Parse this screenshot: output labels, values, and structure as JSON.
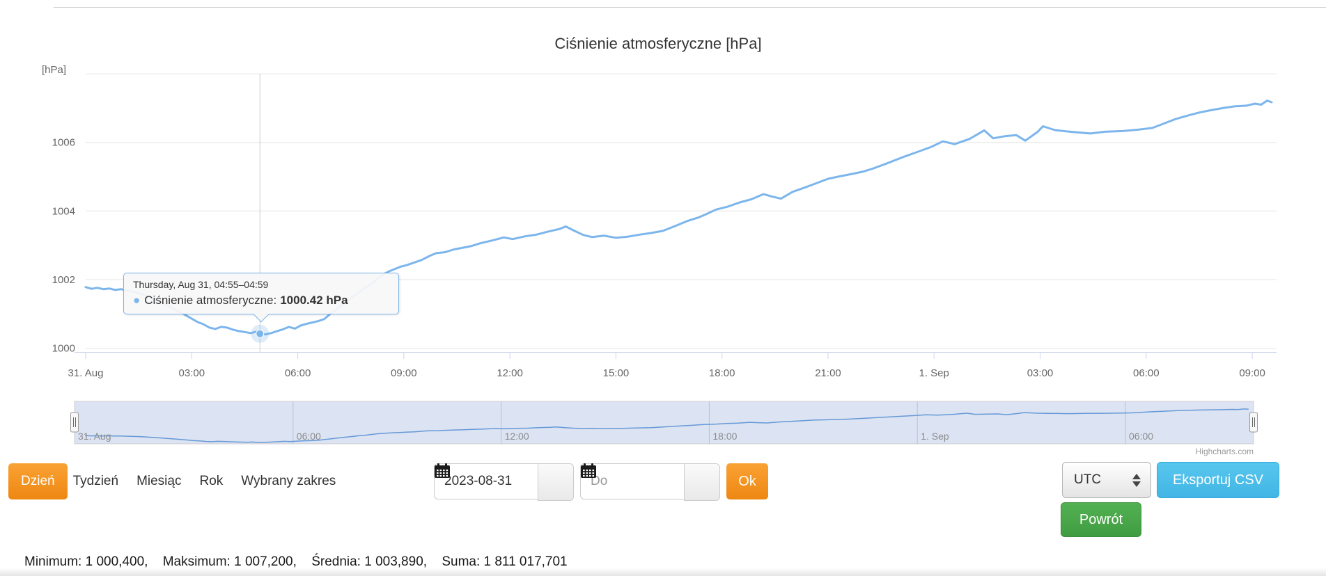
{
  "chart": {
    "title": "Ciśnienie atmosferyczne [hPa]",
    "y_axis_title": "[hPa]",
    "y_ticks": [
      1000,
      1002,
      1004,
      1006
    ],
    "y_grid": [
      1000,
      1002,
      1004,
      1006,
      1008
    ],
    "x_ticks": [
      {
        "t": 0,
        "label": "31. Aug"
      },
      {
        "t": 3,
        "label": "03:00"
      },
      {
        "t": 6,
        "label": "06:00"
      },
      {
        "t": 9,
        "label": "09:00"
      },
      {
        "t": 12,
        "label": "12:00"
      },
      {
        "t": 15,
        "label": "15:00"
      },
      {
        "t": 18,
        "label": "18:00"
      },
      {
        "t": 21,
        "label": "21:00"
      },
      {
        "t": 24,
        "label": "1. Sep"
      },
      {
        "t": 27,
        "label": "03:00"
      },
      {
        "t": 30,
        "label": "06:00"
      },
      {
        "t": 33,
        "label": "09:00"
      }
    ],
    "credits": "Highcharts.com",
    "colors": {
      "series": "#7cb5ec",
      "grid": "#e6e6e6",
      "axis_line": "#ccd6eb",
      "labels": "#666666",
      "crosshair": "#cccccc"
    }
  },
  "chart_data": {
    "type": "line",
    "title": "Ciśnienie atmosferyczne [hPa]",
    "xlabel": "time (hours since 2023-08-31 00:00 UTC)",
    "ylabel": "[hPa]",
    "ylim": [
      999.9,
      1008.1
    ],
    "xlim": [
      0,
      33.75
    ],
    "grid": "horizontal",
    "legend_position": "none",
    "series": [
      {
        "name": "Ciśnienie atmosferyczne",
        "color": "#7cb5ec",
        "points": [
          [
            0.0,
            1001.78
          ],
          [
            0.17,
            1001.73
          ],
          [
            0.33,
            1001.76
          ],
          [
            0.5,
            1001.72
          ],
          [
            0.67,
            1001.74
          ],
          [
            0.83,
            1001.7
          ],
          [
            1.0,
            1001.72
          ],
          [
            1.17,
            1001.68
          ],
          [
            1.33,
            1001.65
          ],
          [
            1.5,
            1001.6
          ],
          [
            1.67,
            1001.55
          ],
          [
            1.83,
            1001.47
          ],
          [
            2.0,
            1001.4
          ],
          [
            2.17,
            1001.32
          ],
          [
            2.33,
            1001.24
          ],
          [
            2.5,
            1001.14
          ],
          [
            2.67,
            1001.05
          ],
          [
            2.83,
            1000.96
          ],
          [
            3.0,
            1000.86
          ],
          [
            3.17,
            1000.76
          ],
          [
            3.33,
            1000.7
          ],
          [
            3.5,
            1000.6
          ],
          [
            3.67,
            1000.56
          ],
          [
            3.83,
            1000.62
          ],
          [
            4.0,
            1000.6
          ],
          [
            4.17,
            1000.54
          ],
          [
            4.33,
            1000.5
          ],
          [
            4.5,
            1000.47
          ],
          [
            4.67,
            1000.44
          ],
          [
            4.83,
            1000.48
          ],
          [
            4.93,
            1000.42
          ],
          [
            5.08,
            1000.4
          ],
          [
            5.25,
            1000.44
          ],
          [
            5.42,
            1000.5
          ],
          [
            5.58,
            1000.55
          ],
          [
            5.75,
            1000.62
          ],
          [
            5.92,
            1000.57
          ],
          [
            6.08,
            1000.66
          ],
          [
            6.25,
            1000.71
          ],
          [
            6.42,
            1000.75
          ],
          [
            6.58,
            1000.79
          ],
          [
            6.75,
            1000.85
          ],
          [
            6.92,
            1001.0
          ],
          [
            7.08,
            1001.12
          ],
          [
            7.25,
            1001.26
          ],
          [
            7.42,
            1001.4
          ],
          [
            7.58,
            1001.52
          ],
          [
            7.75,
            1001.65
          ],
          [
            7.92,
            1001.77
          ],
          [
            8.08,
            1001.87
          ],
          [
            8.25,
            1002.02
          ],
          [
            8.42,
            1002.15
          ],
          [
            8.58,
            1002.24
          ],
          [
            8.75,
            1002.31
          ],
          [
            8.92,
            1002.38
          ],
          [
            9.08,
            1002.42
          ],
          [
            9.25,
            1002.48
          ],
          [
            9.5,
            1002.57
          ],
          [
            9.75,
            1002.7
          ],
          [
            9.92,
            1002.77
          ],
          [
            10.17,
            1002.8
          ],
          [
            10.42,
            1002.88
          ],
          [
            10.67,
            1002.93
          ],
          [
            10.92,
            1002.98
          ],
          [
            11.17,
            1003.06
          ],
          [
            11.5,
            1003.14
          ],
          [
            11.83,
            1003.23
          ],
          [
            12.08,
            1003.18
          ],
          [
            12.42,
            1003.26
          ],
          [
            12.75,
            1003.31
          ],
          [
            13.08,
            1003.4
          ],
          [
            13.42,
            1003.48
          ],
          [
            13.58,
            1003.55
          ],
          [
            13.83,
            1003.42
          ],
          [
            14.08,
            1003.3
          ],
          [
            14.33,
            1003.24
          ],
          [
            14.67,
            1003.28
          ],
          [
            15.0,
            1003.22
          ],
          [
            15.33,
            1003.25
          ],
          [
            15.67,
            1003.31
          ],
          [
            16.0,
            1003.36
          ],
          [
            16.33,
            1003.42
          ],
          [
            16.67,
            1003.56
          ],
          [
            17.0,
            1003.7
          ],
          [
            17.33,
            1003.81
          ],
          [
            17.58,
            1003.92
          ],
          [
            17.83,
            1004.04
          ],
          [
            18.17,
            1004.13
          ],
          [
            18.5,
            1004.25
          ],
          [
            18.83,
            1004.34
          ],
          [
            19.17,
            1004.49
          ],
          [
            19.42,
            1004.42
          ],
          [
            19.67,
            1004.36
          ],
          [
            20.0,
            1004.56
          ],
          [
            20.33,
            1004.68
          ],
          [
            20.67,
            1004.81
          ],
          [
            21.0,
            1004.94
          ],
          [
            21.33,
            1005.01
          ],
          [
            21.67,
            1005.08
          ],
          [
            22.0,
            1005.15
          ],
          [
            22.25,
            1005.23
          ],
          [
            22.67,
            1005.39
          ],
          [
            23.17,
            1005.59
          ],
          [
            23.58,
            1005.74
          ],
          [
            23.92,
            1005.87
          ],
          [
            24.25,
            1006.03
          ],
          [
            24.58,
            1005.95
          ],
          [
            25.0,
            1006.1
          ],
          [
            25.42,
            1006.35
          ],
          [
            25.67,
            1006.12
          ],
          [
            26.0,
            1006.18
          ],
          [
            26.33,
            1006.21
          ],
          [
            26.58,
            1006.05
          ],
          [
            26.92,
            1006.3
          ],
          [
            27.08,
            1006.47
          ],
          [
            27.42,
            1006.36
          ],
          [
            27.75,
            1006.32
          ],
          [
            28.08,
            1006.29
          ],
          [
            28.42,
            1006.26
          ],
          [
            28.83,
            1006.31
          ],
          [
            29.33,
            1006.33
          ],
          [
            29.75,
            1006.37
          ],
          [
            30.17,
            1006.42
          ],
          [
            30.5,
            1006.55
          ],
          [
            30.83,
            1006.68
          ],
          [
            31.17,
            1006.78
          ],
          [
            31.5,
            1006.87
          ],
          [
            31.83,
            1006.94
          ],
          [
            32.17,
            1007.0
          ],
          [
            32.5,
            1007.05
          ],
          [
            32.83,
            1007.07
          ],
          [
            33.08,
            1007.13
          ],
          [
            33.25,
            1007.1
          ],
          [
            33.42,
            1007.22
          ],
          [
            33.55,
            1007.17
          ]
        ]
      }
    ]
  },
  "tooltip": {
    "title": "Thursday, Aug 31, 04:55–04:59",
    "bullet": "●",
    "label": "Ciśnienie atmosferyczne:",
    "value": "1000.42 hPa",
    "point_t": 4.93,
    "point_v": 1000.42
  },
  "navigator": {
    "ticks": [
      {
        "t": 0,
        "label": "31. Aug"
      },
      {
        "t": 6,
        "label": "06:00"
      },
      {
        "t": 12,
        "label": "12:00"
      },
      {
        "t": 18,
        "label": "18:00"
      },
      {
        "t": 24,
        "label": "1. Sep"
      },
      {
        "t": 30,
        "label": "06:00"
      }
    ],
    "mask_color": "#dce3f3",
    "line_color": "#6699d6"
  },
  "controls": {
    "range_buttons": [
      {
        "label": "Dzień",
        "active": true
      },
      {
        "label": "Tydzień",
        "active": false
      },
      {
        "label": "Miesiąc",
        "active": false
      },
      {
        "label": "Rok",
        "active": false
      },
      {
        "label": "Wybrany zakres",
        "active": false
      }
    ],
    "date_from": {
      "value": "2023-08-31"
    },
    "date_to": {
      "placeholder": "Do"
    },
    "ok_label": "Ok",
    "timezone": {
      "selected": "UTC"
    },
    "export_csv_label": "Eksportuj CSV",
    "back_label": "Powrót",
    "accent_orange": "#f7941e",
    "accent_blue": "#4cc0ea",
    "accent_green": "#4aa84a"
  },
  "stats": {
    "minimum": "Minimum: 1 000,400,",
    "maksimum": "Maksimum: 1 007,200,",
    "srednia": "Średnia: 1 003,890,",
    "suma": "Suma: 1 811 017,701"
  }
}
